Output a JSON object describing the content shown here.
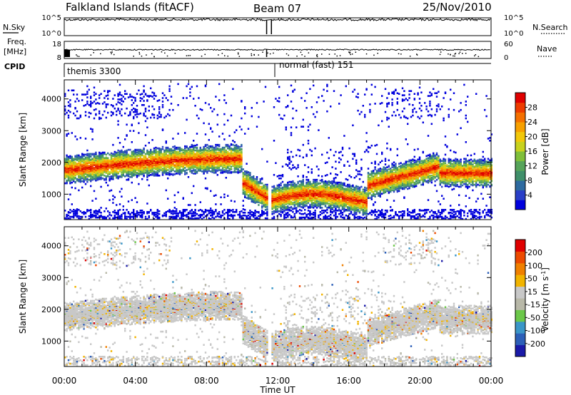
{
  "header": {
    "station": "Falkland Islands (fitACF)",
    "beam": "Beam 07",
    "date": "25/Nov/2010"
  },
  "left_labels": {
    "nsky": "N.Sky",
    "freq_line1": "Freq.",
    "freq_line2": "[MHz]",
    "cpid": "CPID"
  },
  "right_labels": {
    "nsearch": "N.Search",
    "nave": "Nave"
  },
  "cpid_segments": [
    {
      "label": "themis 3300",
      "start_hour": 0,
      "end_hour": 11.4
    },
    {
      "label": "normal (fast) 151",
      "start_hour": 11.6,
      "end_hour": 24
    }
  ],
  "colors": {
    "frame": "#000000",
    "power_scale": [
      "#0000dd",
      "#2a3fc8",
      "#2d6aa0",
      "#3f8f6a",
      "#56a45a",
      "#7fbf3a",
      "#c8d21e",
      "#f2c80a",
      "#f7a000",
      "#f57000",
      "#ee3c00",
      "#e00000"
    ],
    "velocity_scale": [
      "#1a1aa8",
      "#2c5fb8",
      "#3a96c8",
      "#6cc84a",
      "#b8b8a8",
      "#c8c8c8",
      "#f2b400",
      "#f08000",
      "#ec4a00",
      "#e00000"
    ]
  },
  "chart_data": [
    {
      "type": "line",
      "panel": "N.Sky / N.Search",
      "left_ticks": [
        "10^5",
        "10^0"
      ],
      "right_ticks": [
        "10^5",
        "10^0"
      ]
    },
    {
      "type": "line",
      "panel": "Freq / Nave",
      "left_ticks": [
        "18",
        "8"
      ],
      "right_ticks": [
        "60",
        "0"
      ]
    },
    {
      "type": "heatmap",
      "panel": "Power",
      "ylabel": "Slant Range [km]",
      "yticks": [
        1000,
        2000,
        3000,
        4000
      ],
      "ylim": [
        200,
        4600
      ],
      "xlim": [
        0,
        24
      ],
      "colorbar_label": "Power [dB]",
      "colorbar_ticks": [
        4,
        8,
        12,
        16,
        20,
        24,
        28
      ],
      "colorbar_range": [
        0,
        32
      ]
    },
    {
      "type": "heatmap",
      "panel": "Velocity",
      "ylabel": "Slant Range [km]",
      "yticks": [
        1000,
        2000,
        3000,
        4000
      ],
      "ylim": [
        200,
        4600
      ],
      "xlim": [
        0,
        24
      ],
      "colorbar_label": "Velocity [m s",
      "colorbar_label_sup": "-1",
      "colorbar_label_end": "]",
      "colorbar_ticks": [
        -200,
        -100,
        -50,
        -15,
        15,
        50,
        100,
        200
      ]
    }
  ],
  "x_axis": {
    "tick_labels": [
      "00:00",
      "04:00",
      "08:00",
      "12:00",
      "16:00",
      "20:00",
      "00:00"
    ],
    "xlabel": "Time UT"
  }
}
